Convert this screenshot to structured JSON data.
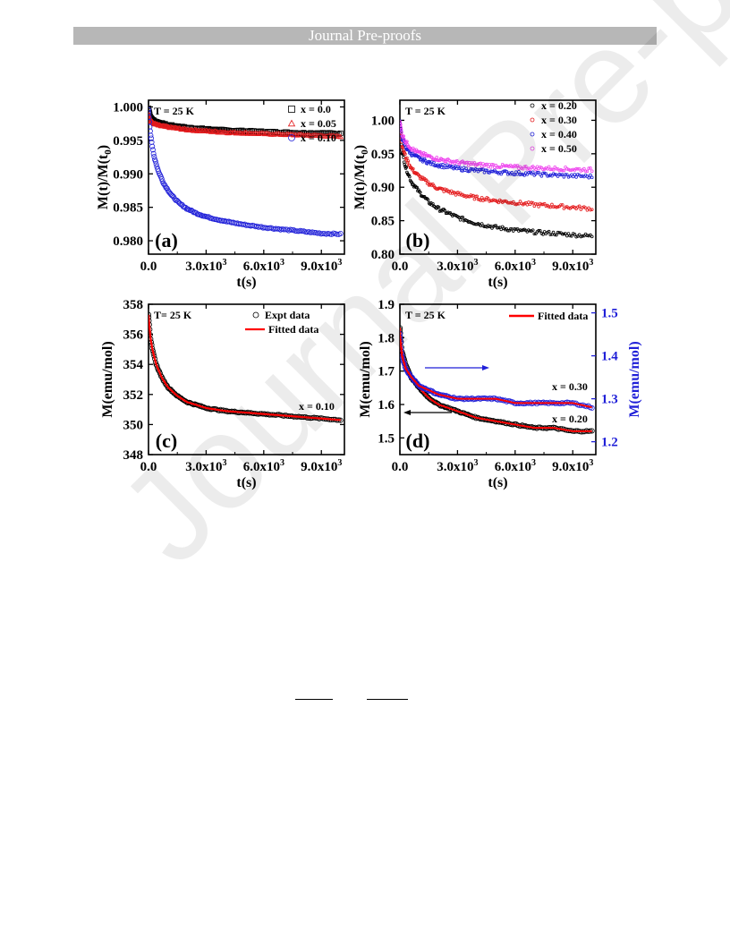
{
  "header": {
    "text": "Journal Pre-proofs"
  },
  "watermark": {
    "text": "Journal Pre-proofs"
  },
  "colors": {
    "header_bg": "#b7b7b7",
    "black": "#000000",
    "red": "#e41a1c",
    "blue": "#1f1fd8",
    "magenta": "#ee44ee",
    "fit_red": "#ff0000"
  },
  "chart_data": [
    {
      "panel": "(a)",
      "type": "scatter",
      "annotation": "T = 25 K",
      "xlabel": "t(s)",
      "ylabel": "M(t)/M(t",
      "ylabel_sub": "0",
      "ylabel_end": ")",
      "xlim": [
        0,
        10200
      ],
      "ylim": [
        0.978,
        1.001
      ],
      "xticks": [
        {
          "v": 0,
          "label": "0.0"
        },
        {
          "v": 3000,
          "label": "3.0x10",
          "exp": "3"
        },
        {
          "v": 6000,
          "label": "6.0x10",
          "exp": "3"
        },
        {
          "v": 9000,
          "label": "9.0x10",
          "exp": "3"
        }
      ],
      "yticks": [
        {
          "v": 0.98,
          "label": "0.980"
        },
        {
          "v": 0.985,
          "label": "0.985"
        },
        {
          "v": 0.99,
          "label": "0.990"
        },
        {
          "v": 0.995,
          "label": "0.995"
        },
        {
          "v": 1.0,
          "label": "1.000"
        }
      ],
      "legend_position": "top-right",
      "series": [
        {
          "name": "x = 0.0",
          "marker": "square",
          "color": "#000000",
          "x": [
            0,
            100,
            300,
            600,
            1000,
            1500,
            2000,
            3000,
            4000,
            5000,
            6000,
            7000,
            8000,
            9000,
            10000
          ],
          "y": [
            0.9998,
            0.9984,
            0.9979,
            0.9976,
            0.9973,
            0.9971,
            0.9969,
            0.9967,
            0.9965,
            0.9964,
            0.9963,
            0.9962,
            0.9961,
            0.9961,
            0.996
          ]
        },
        {
          "name": "x = 0.05",
          "marker": "triangle",
          "color": "#e41a1c",
          "x": [
            0,
            100,
            300,
            600,
            1000,
            1500,
            2000,
            3000,
            4000,
            5000,
            6000,
            7000,
            8000,
            9000,
            10000
          ],
          "y": [
            0.999,
            0.9979,
            0.9975,
            0.9972,
            0.997,
            0.9968,
            0.9966,
            0.9964,
            0.9962,
            0.9961,
            0.996,
            0.9959,
            0.9958,
            0.9957,
            0.9956
          ]
        },
        {
          "name": "x = 0.10",
          "marker": "circle",
          "color": "#1f1fd8",
          "x": [
            0,
            50,
            100,
            200,
            300,
            500,
            800,
            1200,
            1600,
            2000,
            2500,
            3000,
            4000,
            5000,
            6000,
            7000,
            8000,
            9000,
            10000
          ],
          "y": [
            0.9995,
            0.9975,
            0.996,
            0.994,
            0.9925,
            0.9905,
            0.9885,
            0.9868,
            0.9856,
            0.9848,
            0.9841,
            0.9836,
            0.9829,
            0.9824,
            0.982,
            0.9817,
            0.9814,
            0.9811,
            0.981
          ]
        }
      ]
    },
    {
      "panel": "(b)",
      "type": "scatter",
      "annotation": "T = 25 K",
      "xlabel": "t(s)",
      "ylabel": "M(t)/M(t",
      "ylabel_sub": "0",
      "ylabel_end": ")",
      "xlim": [
        0,
        10200
      ],
      "ylim": [
        0.8,
        1.03
      ],
      "xticks": [
        {
          "v": 0,
          "label": "0.0"
        },
        {
          "v": 3000,
          "label": "3.0x10",
          "exp": "3"
        },
        {
          "v": 6000,
          "label": "6.0x10",
          "exp": "3"
        },
        {
          "v": 9000,
          "label": "9.0x10",
          "exp": "3"
        }
      ],
      "yticks": [
        {
          "v": 0.8,
          "label": "0.80"
        },
        {
          "v": 0.85,
          "label": "0.85"
        },
        {
          "v": 0.9,
          "label": "0.90"
        },
        {
          "v": 0.95,
          "label": "0.95"
        },
        {
          "v": 1.0,
          "label": "1.00"
        }
      ],
      "legend_position": "top-right",
      "series": [
        {
          "name": "x = 0.20",
          "marker": "circle",
          "color": "#000000",
          "x": [
            0,
            100,
            300,
            600,
            1000,
            1500,
            2000,
            3000,
            4000,
            5000,
            6000,
            7000,
            8000,
            9000,
            10000
          ],
          "y": [
            0.995,
            0.955,
            0.93,
            0.908,
            0.893,
            0.878,
            0.868,
            0.855,
            0.846,
            0.84,
            0.836,
            0.833,
            0.831,
            0.829,
            0.827
          ]
        },
        {
          "name": "x = 0.30",
          "marker": "circle",
          "color": "#e41a1c",
          "x": [
            0,
            100,
            300,
            600,
            1000,
            1500,
            2000,
            3000,
            4000,
            5000,
            6000,
            7000,
            8000,
            9000,
            10000
          ],
          "y": [
            0.998,
            0.965,
            0.945,
            0.928,
            0.916,
            0.906,
            0.898,
            0.89,
            0.884,
            0.88,
            0.877,
            0.874,
            0.872,
            0.87,
            0.868
          ]
        },
        {
          "name": "x = 0.40",
          "marker": "circle",
          "color": "#1f1fd8",
          "x": [
            0,
            100,
            300,
            600,
            1000,
            1500,
            2000,
            3000,
            4000,
            5000,
            6000,
            7000,
            8000,
            9000,
            10000
          ],
          "y": [
            0.998,
            0.975,
            0.96,
            0.95,
            0.943,
            0.937,
            0.933,
            0.928,
            0.925,
            0.923,
            0.921,
            0.92,
            0.918,
            0.917,
            0.916
          ]
        },
        {
          "name": "x = 0.50",
          "marker": "circle",
          "color": "#ee44ee",
          "x": [
            0,
            100,
            300,
            600,
            1000,
            1500,
            2000,
            3000,
            4000,
            5000,
            6000,
            7000,
            8000,
            9000,
            10000
          ],
          "y": [
            0.998,
            0.98,
            0.968,
            0.958,
            0.951,
            0.946,
            0.942,
            0.937,
            0.934,
            0.932,
            0.93,
            0.929,
            0.928,
            0.927,
            0.926
          ]
        }
      ]
    },
    {
      "panel": "(c)",
      "type": "scatter",
      "annotation": "T= 25 K",
      "xlabel": "t(s)",
      "ylabel": "M(emu/mol)",
      "xlim": [
        0,
        10200
      ],
      "ylim": [
        348,
        358
      ],
      "xticks": [
        {
          "v": 0,
          "label": "0.0"
        },
        {
          "v": 3000,
          "label": "3.0x10",
          "exp": "3"
        },
        {
          "v": 6000,
          "label": "6.0x10",
          "exp": "3"
        },
        {
          "v": 9000,
          "label": "9.0x10",
          "exp": "3"
        }
      ],
      "yticks": [
        {
          "v": 348,
          "label": "348"
        },
        {
          "v": 350,
          "label": "350"
        },
        {
          "v": 352,
          "label": "352"
        },
        {
          "v": 354,
          "label": "354"
        },
        {
          "v": 356,
          "label": "356"
        },
        {
          "v": 358,
          "label": "358"
        }
      ],
      "legend_position": "top-right",
      "series_label": "x = 0.10",
      "series": [
        {
          "name": "Expt data",
          "marker": "circle",
          "color": "#000000",
          "x": [
            0,
            100,
            200,
            400,
            700,
            1000,
            1500,
            2000,
            2500,
            3000,
            4000,
            5000,
            6000,
            7000,
            8000,
            9000,
            10000
          ],
          "y": [
            357.3,
            355.8,
            355.0,
            354.0,
            353.1,
            352.5,
            351.9,
            351.5,
            351.3,
            351.1,
            350.9,
            350.8,
            350.7,
            350.6,
            350.5,
            350.4,
            350.3
          ]
        },
        {
          "name": "Fitted data",
          "marker": "line",
          "color": "#ff0000",
          "x": [
            0,
            100,
            200,
            400,
            700,
            1000,
            1500,
            2000,
            2500,
            3000,
            4000,
            5000,
            6000,
            7000,
            8000,
            9000,
            10000
          ],
          "y": [
            357.3,
            355.8,
            355.0,
            354.0,
            353.1,
            352.5,
            351.9,
            351.5,
            351.3,
            351.1,
            350.9,
            350.8,
            350.7,
            350.6,
            350.5,
            350.4,
            350.3
          ]
        }
      ]
    },
    {
      "panel": "(d)",
      "type": "scatter",
      "annotation": "T = 25 K",
      "xlabel": "t(s)",
      "ylabel": "M(emu/mol)",
      "ylabel_right": "M(emu/mol)",
      "xlim": [
        0,
        10200
      ],
      "ylim": [
        1.45,
        1.9
      ],
      "ylim_right": [
        1.17,
        1.52
      ],
      "xticks": [
        {
          "v": 0,
          "label": "0.0"
        },
        {
          "v": 3000,
          "label": "3.0x10",
          "exp": "3"
        },
        {
          "v": 6000,
          "label": "6.0x10",
          "exp": "3"
        },
        {
          "v": 9000,
          "label": "9.0x10",
          "exp": "3"
        }
      ],
      "yticks": [
        {
          "v": 1.5,
          "label": "1.5"
        },
        {
          "v": 1.6,
          "label": "1.6"
        },
        {
          "v": 1.7,
          "label": "1.7"
        },
        {
          "v": 1.8,
          "label": "1.8"
        },
        {
          "v": 1.9,
          "label": "1.9"
        }
      ],
      "yticks_right": [
        {
          "v": 1.2,
          "label": "1.2"
        },
        {
          "v": 1.3,
          "label": "1.3"
        },
        {
          "v": 1.4,
          "label": "1.4"
        },
        {
          "v": 1.5,
          "label": "1.5"
        }
      ],
      "legend_position": "top-right",
      "labels": {
        "upper": "x = 0.30",
        "lower": "x = 0.20",
        "legend": "Fitted data"
      },
      "series": [
        {
          "name": "x = 0.20",
          "axis": "left",
          "marker": "circle",
          "color": "#000000",
          "x": [
            0,
            100,
            300,
            600,
            1000,
            1500,
            2000,
            3000,
            4000,
            5000,
            6000,
            7000,
            8000,
            9000,
            10000
          ],
          "y": [
            1.83,
            1.76,
            1.72,
            1.68,
            1.65,
            1.62,
            1.6,
            1.58,
            1.56,
            1.55,
            1.54,
            1.53,
            1.53,
            1.52,
            1.52
          ]
        },
        {
          "name": "x = 0.30",
          "axis": "right",
          "marker": "circle",
          "color": "#1f1fd8",
          "x": [
            0,
            100,
            300,
            600,
            1000,
            1500,
            2000,
            3000,
            4000,
            5000,
            6000,
            7000,
            8000,
            9000,
            10000
          ],
          "y": [
            1.45,
            1.4,
            1.37,
            1.35,
            1.33,
            1.32,
            1.31,
            1.3,
            1.3,
            1.3,
            1.29,
            1.29,
            1.29,
            1.29,
            1.28
          ]
        }
      ]
    }
  ]
}
